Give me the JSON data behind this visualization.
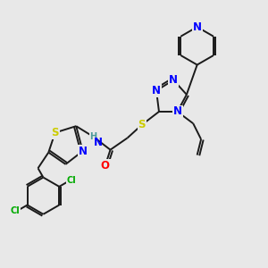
{
  "bg_color": "#e8e8e8",
  "bond_color": "#1a1a1a",
  "atom_colors": {
    "N": "#0000ff",
    "S": "#cccc00",
    "O": "#ff0000",
    "Cl": "#00aa00",
    "H": "#4a9a9a",
    "C": "#1a1a1a"
  },
  "font_size_atom": 8.5,
  "font_size_small": 7.5
}
